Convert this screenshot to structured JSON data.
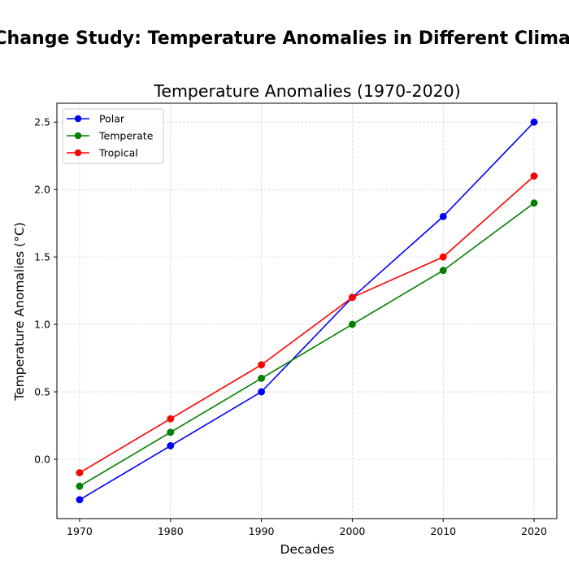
{
  "figure": {
    "suptitle": "Climate Change Study: Temperature Anomalies in Different Climate Zones"
  },
  "chart_data": {
    "type": "line",
    "title": "Temperature Anomalies (1970-2020)",
    "xlabel": "Decades",
    "ylabel": "Temperature Anomalies (°C)",
    "x": [
      1970,
      1980,
      1990,
      2000,
      2010,
      2020
    ],
    "xticks": [
      "1970",
      "1980",
      "1990",
      "2000",
      "2010",
      "2020"
    ],
    "yticks": [
      "0.0",
      "0.5",
      "1.0",
      "1.5",
      "2.0",
      "2.5"
    ],
    "xlim": [
      1967.5,
      2022.5
    ],
    "ylim": [
      -0.44,
      2.64
    ],
    "grid": true,
    "legend_position": "upper-left",
    "series": [
      {
        "name": "Polar",
        "color": "#0000ff",
        "values": [
          -0.3,
          0.1,
          0.5,
          1.2,
          1.8,
          2.5
        ]
      },
      {
        "name": "Temperate",
        "color": "#008000",
        "values": [
          -0.2,
          0.2,
          0.6,
          1.0,
          1.4,
          1.9
        ]
      },
      {
        "name": "Tropical",
        "color": "#ff0000",
        "values": [
          -0.1,
          0.3,
          0.7,
          1.2,
          1.5,
          2.1
        ]
      }
    ]
  }
}
